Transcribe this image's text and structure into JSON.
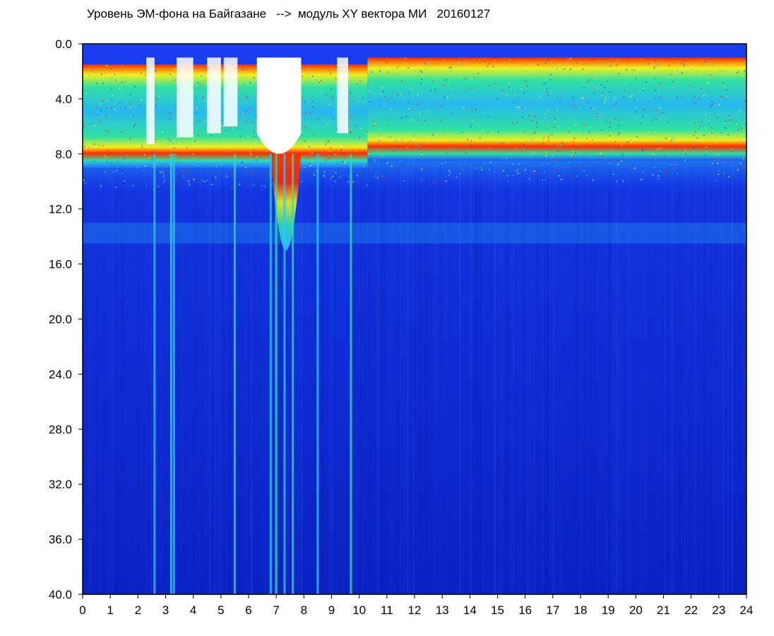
{
  "chart_data": {
    "type": "heatmap",
    "title": "Уровень ЭМ-фона на Байгазане   -->  модуль XY вектора МИ   20160127",
    "xlabel": "",
    "ylabel": "",
    "x_ticks": [
      "0",
      "1",
      "2",
      "3",
      "4",
      "5",
      "6",
      "7",
      "8",
      "9",
      "10",
      "11",
      "12",
      "13",
      "14",
      "15",
      "16",
      "17",
      "18",
      "19",
      "20",
      "21",
      "22",
      "23",
      "24"
    ],
    "y_ticks": [
      "0.0",
      "4.0",
      "8.0",
      "12.0",
      "16.0",
      "20.0",
      "24.0",
      "28.0",
      "32.0",
      "36.0",
      "40.0"
    ],
    "xlim": [
      0,
      24
    ],
    "ylim": [
      0,
      40
    ],
    "y_inverted": true,
    "colormap": [
      "#0a1ec8",
      "#1e50ff",
      "#28c8ff",
      "#30e0a0",
      "#f0f020",
      "#ff2a00"
    ],
    "background_color": "#ffffff",
    "features": {
      "band_top_after_10h": [
        1.0,
        8.5
      ],
      "band_top_before_10h": [
        1.5,
        9.0
      ],
      "saturated_gap_hours": [
        6.3,
        7.9
      ],
      "deep_peak_hours": [
        6.8,
        7.9
      ],
      "vertical_streak_hours": [
        2.6,
        3.2,
        3.3,
        5.5,
        6.8,
        7.0,
        7.3,
        7.6,
        8.5,
        9.7
      ],
      "secondary_band_level": [
        13.0,
        14.5
      ]
    }
  }
}
